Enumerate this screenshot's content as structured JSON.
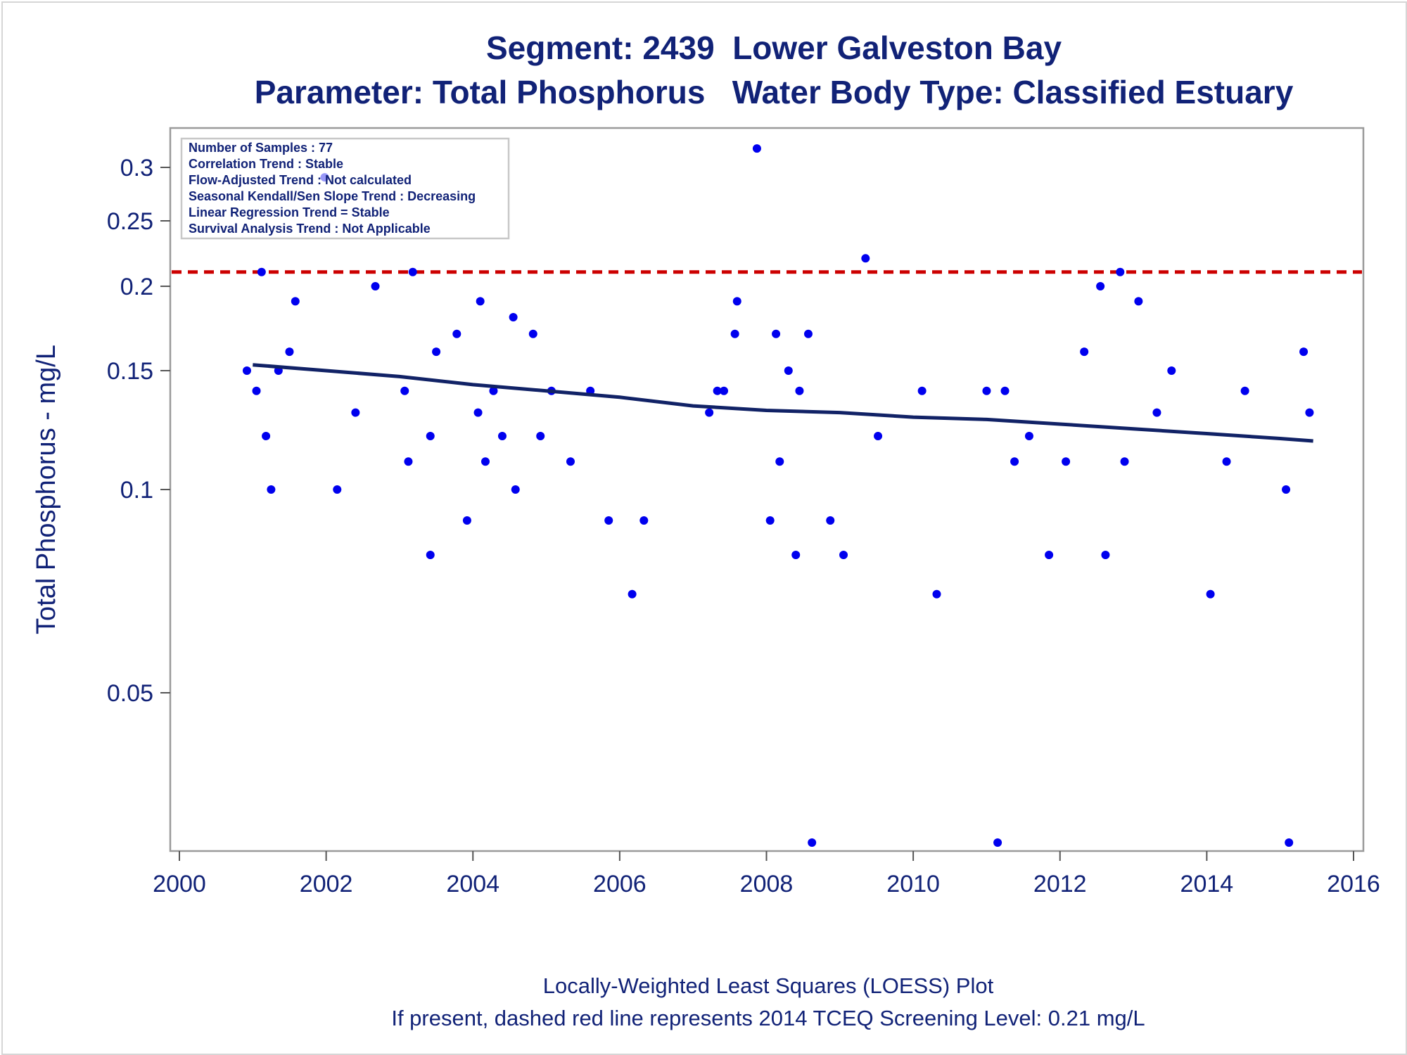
{
  "chart_data": {
    "type": "scatter",
    "title": "Segment: 2439  Lower Galveston Bay",
    "subtitle": "Parameter: Total Phosphorus   Water Body Type: Classified Estuary",
    "ylabel": "Total Phosphorus - mg/L",
    "xlabel": "",
    "y_scale": "log",
    "xlim": [
      2000,
      2016
    ],
    "ylim": [
      0.028,
      0.33
    ],
    "x_ticks": [
      "2000",
      "2002",
      "2004",
      "2006",
      "2008",
      "2010",
      "2012",
      "2014",
      "2016"
    ],
    "y_ticks": [
      "0.3",
      "0.25",
      "0.2",
      "0.15",
      "0.1",
      "0.05"
    ],
    "grid": false,
    "stats_box": [
      "Number of Samples : 77",
      "Correlation Trend : Stable",
      "Flow-Adjusted Trend : Not calculated",
      "Seasonal Kendall/Sen Slope Trend : Decreasing",
      "Linear Regression Trend = Stable",
      "Survival Analysis Trend : Not Applicable"
    ],
    "footnotes": [
      "Locally-Weighted Least Squares (LOESS) Plot",
      "If present, dashed red line represents 2014 TCEQ Screening Level: 0.21 mg/L"
    ],
    "screening_level": 0.21,
    "colors": {
      "points": "#0000ee",
      "trend": "#112266",
      "screening": "#cc0000",
      "text": "#112277"
    },
    "series": [
      {
        "type": "scatter",
        "x": [
          2000.92,
          2001.05,
          2001.12,
          2001.18,
          2001.25,
          2001.35,
          2001.5,
          2001.58,
          2001.98,
          2002.15,
          2002.4,
          2002.67,
          2003.07,
          2003.12,
          2003.18,
          2003.42,
          2003.42,
          2003.5,
          2003.78,
          2003.92,
          2004.07,
          2004.1,
          2004.17,
          2004.28,
          2004.4,
          2004.55,
          2004.58,
          2004.82,
          2004.92,
          2005.07,
          2005.33,
          2005.6,
          2005.85,
          2006.17,
          2006.33,
          2007.22,
          2007.33,
          2007.42,
          2007.57,
          2007.6,
          2007.87,
          2008.05,
          2008.13,
          2008.18,
          2008.3,
          2008.4,
          2008.45,
          2008.57,
          2008.62,
          2008.87,
          2009.05,
          2009.35,
          2009.52,
          2010.12,
          2010.32,
          2011.0,
          2011.15,
          2011.25,
          2011.38,
          2011.58,
          2011.85,
          2012.08,
          2012.33,
          2012.55,
          2012.62,
          2012.82,
          2012.88,
          2013.07,
          2013.32,
          2013.52,
          2014.05,
          2014.27,
          2014.52,
          2015.08,
          2015.12,
          2015.32,
          2015.4
        ],
        "y": [
          0.15,
          0.14,
          0.21,
          0.12,
          0.1,
          0.15,
          0.16,
          0.19,
          0.29,
          0.1,
          0.13,
          0.2,
          0.14,
          0.11,
          0.21,
          0.12,
          0.08,
          0.16,
          0.17,
          0.09,
          0.13,
          0.19,
          0.11,
          0.14,
          0.12,
          0.18,
          0.1,
          0.17,
          0.12,
          0.14,
          0.11,
          0.14,
          0.09,
          0.07,
          0.09,
          0.13,
          0.14,
          0.14,
          0.17,
          0.19,
          0.32,
          0.09,
          0.17,
          0.11,
          0.15,
          0.08,
          0.14,
          0.17,
          0.03,
          0.09,
          0.08,
          0.22,
          0.12,
          0.14,
          0.07,
          0.14,
          0.03,
          0.14,
          0.11,
          0.12,
          0.08,
          0.11,
          0.16,
          0.2,
          0.08,
          0.21,
          0.11,
          0.19,
          0.13,
          0.15,
          0.07,
          0.11,
          0.14,
          0.1,
          0.03,
          0.16,
          0.13
        ]
      },
      {
        "type": "line",
        "x": [
          2001.0,
          2002.0,
          2003.0,
          2004.0,
          2005.0,
          2006.0,
          2007.0,
          2008.0,
          2009.0,
          2010.0,
          2011.0,
          2012.0,
          2013.0,
          2014.0,
          2015.0,
          2015.45
        ],
        "y": [
          0.153,
          0.15,
          0.147,
          0.143,
          0.14,
          0.137,
          0.133,
          0.131,
          0.13,
          0.128,
          0.127,
          0.125,
          0.123,
          0.121,
          0.119,
          0.118
        ]
      }
    ]
  }
}
